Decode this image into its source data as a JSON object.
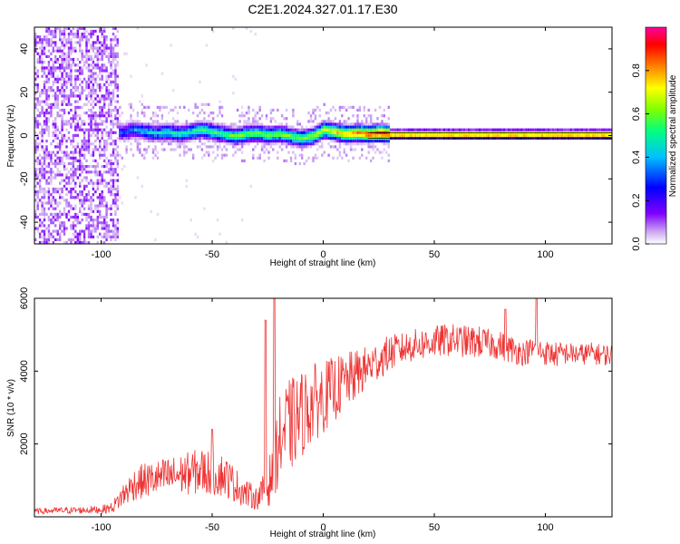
{
  "chart_data": [
    {
      "type": "heatmap",
      "title": "C2E1.2024.327.01.17.E30",
      "xlabel": "Height of straight line (km)",
      "ylabel": "Frequency (Hz)",
      "xlim": [
        -130,
        130
      ],
      "ylim": [
        -50,
        50
      ],
      "xticks": [
        -100,
        -50,
        0,
        50,
        100
      ],
      "yticks": [
        -40,
        -20,
        0,
        20,
        40
      ],
      "colorbar": {
        "label": "Normalized spectral amplitude",
        "range": [
          0.0,
          1.0
        ],
        "ticks": [
          "0.0",
          "0.2",
          "0.4",
          "0.6",
          "0.8"
        ],
        "colormap": [
          "#ffffff",
          "#c8a0f0",
          "#8000ff",
          "#0000ff",
          "#00c0ff",
          "#00ff80",
          "#80ff00",
          "#ffff00",
          "#ff8000",
          "#ff0000",
          "#ff00a0"
        ]
      },
      "ridge_profile": {
        "x": [
          -90,
          -85,
          -80,
          -75,
          -70,
          -65,
          -60,
          -55,
          -50,
          -45,
          -40,
          -35,
          -30,
          -25,
          -20,
          -15,
          -10,
          -5,
          0,
          5,
          10,
          15,
          20,
          25,
          30,
          40,
          50,
          60,
          70,
          80,
          90,
          100,
          110,
          120,
          130
        ],
        "frequency": [
          1,
          2,
          1,
          0.5,
          1,
          0,
          1,
          2,
          1,
          0,
          -1,
          0,
          0.5,
          -0.5,
          0,
          -1,
          -2,
          -1,
          2,
          1,
          0,
          0.5,
          0,
          0.5,
          0,
          0,
          0,
          0,
          0,
          0,
          0,
          0,
          0,
          0,
          0
        ],
        "amplitude": [
          0.35,
          0.4,
          0.45,
          0.45,
          0.5,
          0.5,
          0.5,
          0.55,
          0.55,
          0.55,
          0.6,
          0.6,
          0.6,
          0.6,
          0.6,
          0.6,
          0.6,
          0.65,
          0.7,
          0.75,
          0.8,
          0.85,
          0.9,
          0.95,
          0.95,
          0.95,
          0.95,
          0.95,
          0.95,
          0.95,
          0.95,
          0.95,
          0.95,
          0.95,
          0.95
        ]
      }
    },
    {
      "type": "line",
      "title": "",
      "xlabel": "Height of straight line (km)",
      "ylabel": "SNR (10 * v/v)",
      "xlim": [
        -130,
        130
      ],
      "ylim": [
        0,
        6000
      ],
      "xticks": [
        -100,
        -50,
        0,
        50,
        100
      ],
      "yticks": [
        2000,
        4000,
        6000
      ],
      "color": "#ee3333",
      "series": [
        {
          "x": [
            -130,
            -120,
            -110,
            -100,
            -95,
            -90,
            -85,
            -80,
            -75,
            -70,
            -65,
            -60,
            -55,
            -50,
            -45,
            -40,
            -35,
            -30,
            -25,
            -22,
            -20,
            -18,
            -15,
            -10,
            -5,
            0,
            5,
            10,
            15,
            20,
            25,
            30,
            35,
            40,
            45,
            50,
            55,
            60,
            65,
            70,
            75,
            80,
            85,
            90,
            95,
            100,
            105,
            110,
            115,
            120,
            125,
            130
          ],
          "values": [
            150,
            170,
            180,
            200,
            250,
            600,
            900,
            1000,
            1050,
            1100,
            1150,
            1200,
            1250,
            1200,
            1150,
            900,
            650,
            500,
            800,
            1500,
            2000,
            2300,
            2500,
            2800,
            3100,
            3300,
            3500,
            3700,
            3900,
            4100,
            4300,
            4500,
            4600,
            4700,
            4750,
            4800,
            4850,
            4850,
            4800,
            4800,
            4750,
            4700,
            4600,
            4500,
            4600,
            4500,
            4450,
            4500,
            4450,
            4500,
            4450,
            4450
          ],
          "spread": [
            80,
            90,
            100,
            110,
            150,
            350,
            450,
            500,
            500,
            550,
            550,
            600,
            650,
            650,
            600,
            500,
            400,
            300,
            600,
            900,
            1200,
            1300,
            1300,
            1200,
            1100,
            1000,
            900,
            800,
            700,
            600,
            550,
            500,
            450,
            450,
            450,
            450,
            450,
            450,
            450,
            450,
            400,
            400,
            400,
            350,
            350,
            350,
            350,
            300,
            300,
            300,
            300,
            300
          ],
          "peaks": [
            {
              "x": -22,
              "y": 6000
            },
            {
              "x": -26,
              "y": 5400
            },
            {
              "x": 96,
              "y": 6050
            },
            {
              "x": 82,
              "y": 5700
            },
            {
              "x": -50,
              "y": 2400
            }
          ]
        }
      ]
    }
  ]
}
